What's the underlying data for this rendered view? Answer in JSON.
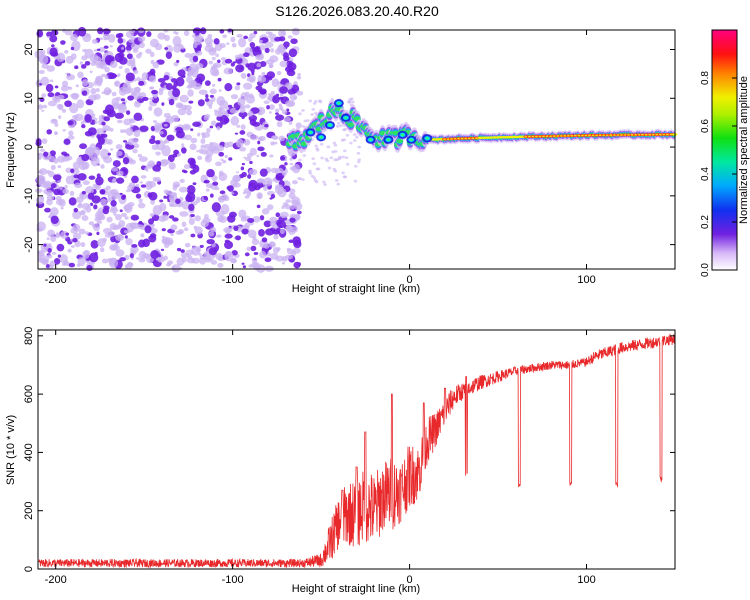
{
  "title": "S126.2026.083.20.40.R20",
  "colors": {
    "snr_line": "#e8282a",
    "axis": "#000000",
    "scatter_fill": "#6f1fe0",
    "scatter_faint": "#c9b2f2"
  },
  "chart_data": [
    {
      "type": "heatmap",
      "name": "spectrogram",
      "xlabel": "Height of straight line (km)",
      "ylabel": "Frequency (Hz)",
      "xlim": [
        -210,
        150
      ],
      "ylim": [
        -25,
        24
      ],
      "x_ticks": [
        -200,
        -100,
        0,
        100
      ],
      "x_tick_labels": [
        "-200",
        "-100",
        "0",
        "100"
      ],
      "y_ticks": [
        -20,
        -10,
        0,
        10,
        20
      ],
      "y_tick_labels": [
        "-20",
        "-10",
        "0",
        "10",
        "20"
      ],
      "noise_region_x": [
        -210,
        -62
      ],
      "signal_track": [
        {
          "x": -70,
          "f": 0.5
        },
        {
          "x": -60,
          "f": 1.5
        },
        {
          "x": -50,
          "f": 5.0
        },
        {
          "x": -40,
          "f": 8.0
        },
        {
          "x": -30,
          "f": 5.0
        },
        {
          "x": -20,
          "f": 2.0
        },
        {
          "x": -10,
          "f": 1.5
        },
        {
          "x": 0,
          "f": 2.5
        },
        {
          "x": 10,
          "f": 1.5
        },
        {
          "x": 50,
          "f": 2.0
        },
        {
          "x": 100,
          "f": 2.4
        },
        {
          "x": 150,
          "f": 2.6
        }
      ],
      "colorbar": {
        "label": "Normalized spectral amplitude",
        "range": [
          0,
          1
        ],
        "ticks": [
          0.0,
          0.2,
          0.4,
          0.6,
          0.8
        ],
        "tick_labels": [
          "0.0",
          "0.2",
          "0.4",
          "0.6",
          "0.8"
        ]
      }
    },
    {
      "type": "line",
      "name": "snr",
      "xlabel": "Height of straight line (km)",
      "ylabel": "SNR (10 * v/v)",
      "xlim": [
        -210,
        150
      ],
      "ylim": [
        0,
        820
      ],
      "x_ticks": [
        -200,
        -100,
        0,
        100
      ],
      "x_tick_labels": [
        "-200",
        "-100",
        "0",
        "100"
      ],
      "y_ticks": [
        0,
        200,
        400,
        600,
        800
      ],
      "y_tick_labels": [
        "0",
        "200",
        "400",
        "600",
        "800"
      ],
      "series": [
        {
          "name": "SNR",
          "x": [
            -210,
            -150,
            -100,
            -60,
            -50,
            -45,
            -40,
            -35,
            -30,
            -25,
            -20,
            -15,
            -10,
            -5,
            0,
            5,
            10,
            15,
            20,
            25,
            30,
            40,
            50,
            60,
            70,
            80,
            90,
            100,
            105,
            110,
            120,
            130,
            140,
            150
          ],
          "y": [
            20,
            20,
            20,
            20,
            30,
            90,
            160,
            190,
            190,
            220,
            200,
            250,
            260,
            270,
            320,
            330,
            440,
            480,
            540,
            590,
            610,
            640,
            660,
            680,
            690,
            700,
            700,
            710,
            730,
            740,
            760,
            770,
            780,
            790
          ],
          "noise_amplitude": [
            14,
            14,
            14,
            14,
            25,
            70,
            90,
            110,
            120,
            130,
            130,
            120,
            130,
            110,
            110,
            100,
            80,
            60,
            50,
            40,
            30,
            25,
            20,
            15,
            15,
            15,
            15,
            15,
            20,
            20,
            20,
            20,
            20,
            20
          ]
        }
      ],
      "spikes": [
        {
          "x": -38,
          "y": 270
        },
        {
          "x": -30,
          "y": 350
        },
        {
          "x": -25,
          "y": 470
        },
        {
          "x": -10,
          "y": 600
        },
        {
          "x": 8,
          "y": 570
        },
        {
          "x": 20,
          "y": 620
        },
        {
          "x": 32,
          "y": 660
        }
      ],
      "dips": [
        {
          "x": 32,
          "y": 310
        },
        {
          "x": 62,
          "y": 280
        },
        {
          "x": 91,
          "y": 280
        },
        {
          "x": 117,
          "y": 280
        },
        {
          "x": 142,
          "y": 300
        }
      ]
    }
  ]
}
